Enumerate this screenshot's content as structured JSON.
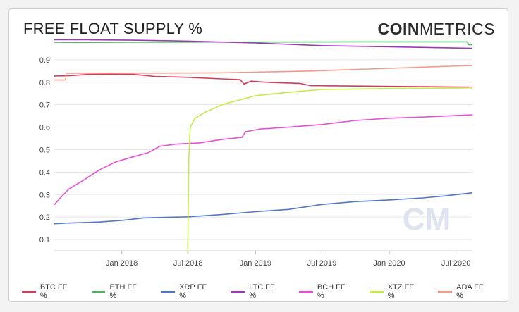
{
  "header": {
    "title": "FREE FLOAT SUPPLY %",
    "logo_bold": "COIN",
    "logo_light": "METRICS",
    "watermark": "CM"
  },
  "chart_data": {
    "type": "line",
    "title": "FREE FLOAT SUPPLY %",
    "xlabel": "",
    "ylabel": "",
    "xlim": [
      "2017-07-01",
      "2020-08-15"
    ],
    "ylim": [
      0.05,
      1.0
    ],
    "y_ticks": [
      0.1,
      0.2,
      0.3,
      0.4,
      0.5,
      0.6,
      0.7,
      0.8,
      0.9
    ],
    "x_ticks": [
      {
        "label": "Jan 2018",
        "date": "2018-01-01"
      },
      {
        "label": "Jul 2018",
        "date": "2018-07-01"
      },
      {
        "label": "Jan 2019",
        "date": "2019-01-01"
      },
      {
        "label": "Jul 2019",
        "date": "2019-07-01"
      },
      {
        "label": "Jan 2020",
        "date": "2020-01-01"
      },
      {
        "label": "Jul 2020",
        "date": "2020-07-01"
      }
    ],
    "grid": "horizontal",
    "legend_position": "bottom",
    "series": [
      {
        "name": "BTC FF %",
        "color": "#d93a5b",
        "points": [
          [
            "2017-07-01",
            0.828
          ],
          [
            "2017-08-15",
            0.829
          ],
          [
            "2017-10-01",
            0.835
          ],
          [
            "2017-12-01",
            0.836
          ],
          [
            "2018-02-01",
            0.835
          ],
          [
            "2018-04-01",
            0.826
          ],
          [
            "2018-07-01",
            0.822
          ],
          [
            "2018-10-01",
            0.815
          ],
          [
            "2018-11-20",
            0.812
          ],
          [
            "2018-12-01",
            0.792
          ],
          [
            "2018-12-20",
            0.805
          ],
          [
            "2019-02-01",
            0.8
          ],
          [
            "2019-05-01",
            0.795
          ],
          [
            "2019-06-01",
            0.785
          ],
          [
            "2019-10-01",
            0.783
          ],
          [
            "2020-02-01",
            0.781
          ],
          [
            "2020-05-01",
            0.78
          ],
          [
            "2020-08-15",
            0.778
          ]
        ]
      },
      {
        "name": "ETH FF %",
        "color": "#58b368",
        "points": [
          [
            "2017-07-01",
            0.978
          ],
          [
            "2017-09-01",
            0.977
          ],
          [
            "2018-01-01",
            0.978
          ],
          [
            "2019-01-01",
            0.979
          ],
          [
            "2020-01-01",
            0.98
          ],
          [
            "2020-08-01",
            0.98
          ],
          [
            "2020-08-05",
            0.967
          ],
          [
            "2020-08-15",
            0.967
          ]
        ]
      },
      {
        "name": "XRP FF %",
        "color": "#5277c9",
        "points": [
          [
            "2017-07-01",
            0.17
          ],
          [
            "2017-08-01",
            0.173
          ],
          [
            "2017-11-01",
            0.178
          ],
          [
            "2018-01-01",
            0.185
          ],
          [
            "2018-03-01",
            0.196
          ],
          [
            "2018-07-01",
            0.201
          ],
          [
            "2018-10-01",
            0.211
          ],
          [
            "2019-01-01",
            0.224
          ],
          [
            "2019-04-01",
            0.234
          ],
          [
            "2019-07-01",
            0.256
          ],
          [
            "2019-10-01",
            0.269
          ],
          [
            "2020-01-01",
            0.276
          ],
          [
            "2020-04-01",
            0.285
          ],
          [
            "2020-06-01",
            0.294
          ],
          [
            "2020-08-15",
            0.308
          ]
        ]
      },
      {
        "name": "LTC FF %",
        "color": "#9b3ab3",
        "points": [
          [
            "2017-07-01",
            0.989
          ],
          [
            "2017-10-01",
            0.989
          ],
          [
            "2018-02-01",
            0.987
          ],
          [
            "2018-07-01",
            0.983
          ],
          [
            "2019-01-01",
            0.975
          ],
          [
            "2019-07-01",
            0.963
          ],
          [
            "2020-01-01",
            0.958
          ],
          [
            "2020-08-15",
            0.951
          ]
        ]
      },
      {
        "name": "BCH FF %",
        "color": "#e94fd2",
        "points": [
          [
            "2017-07-01",
            0.255
          ],
          [
            "2017-07-20",
            0.29
          ],
          [
            "2017-08-10",
            0.325
          ],
          [
            "2017-09-15",
            0.36
          ],
          [
            "2017-11-01",
            0.41
          ],
          [
            "2017-12-15",
            0.445
          ],
          [
            "2018-02-01",
            0.468
          ],
          [
            "2018-03-15",
            0.487
          ],
          [
            "2018-04-15",
            0.515
          ],
          [
            "2018-06-01",
            0.525
          ],
          [
            "2018-08-01",
            0.53
          ],
          [
            "2018-10-01",
            0.545
          ],
          [
            "2018-11-25",
            0.555
          ],
          [
            "2018-12-05",
            0.58
          ],
          [
            "2019-01-15",
            0.592
          ],
          [
            "2019-04-01",
            0.6
          ],
          [
            "2019-07-01",
            0.612
          ],
          [
            "2019-10-01",
            0.63
          ],
          [
            "2020-01-01",
            0.64
          ],
          [
            "2020-04-01",
            0.645
          ],
          [
            "2020-08-15",
            0.655
          ]
        ]
      },
      {
        "name": "XTZ FF %",
        "color": "#c5eb4a",
        "points": [
          [
            "2018-06-30",
            0.04
          ],
          [
            "2018-07-03",
            0.45
          ],
          [
            "2018-07-07",
            0.6
          ],
          [
            "2018-07-20",
            0.64
          ],
          [
            "2018-08-15",
            0.665
          ],
          [
            "2018-10-01",
            0.7
          ],
          [
            "2019-01-01",
            0.74
          ],
          [
            "2019-04-01",
            0.755
          ],
          [
            "2019-07-01",
            0.768
          ],
          [
            "2019-10-01",
            0.77
          ],
          [
            "2020-01-01",
            0.772
          ],
          [
            "2020-08-15",
            0.775
          ]
        ]
      },
      {
        "name": "ADA FF %",
        "color": "#f19a88",
        "points": [
          [
            "2017-07-01",
            0.81
          ],
          [
            "2017-08-01",
            0.81
          ],
          [
            "2017-08-02",
            0.84
          ],
          [
            "2018-02-01",
            0.84
          ],
          [
            "2018-10-01",
            0.842
          ],
          [
            "2019-06-01",
            0.85
          ],
          [
            "2020-01-01",
            0.862
          ],
          [
            "2020-08-15",
            0.875
          ]
        ]
      }
    ]
  }
}
